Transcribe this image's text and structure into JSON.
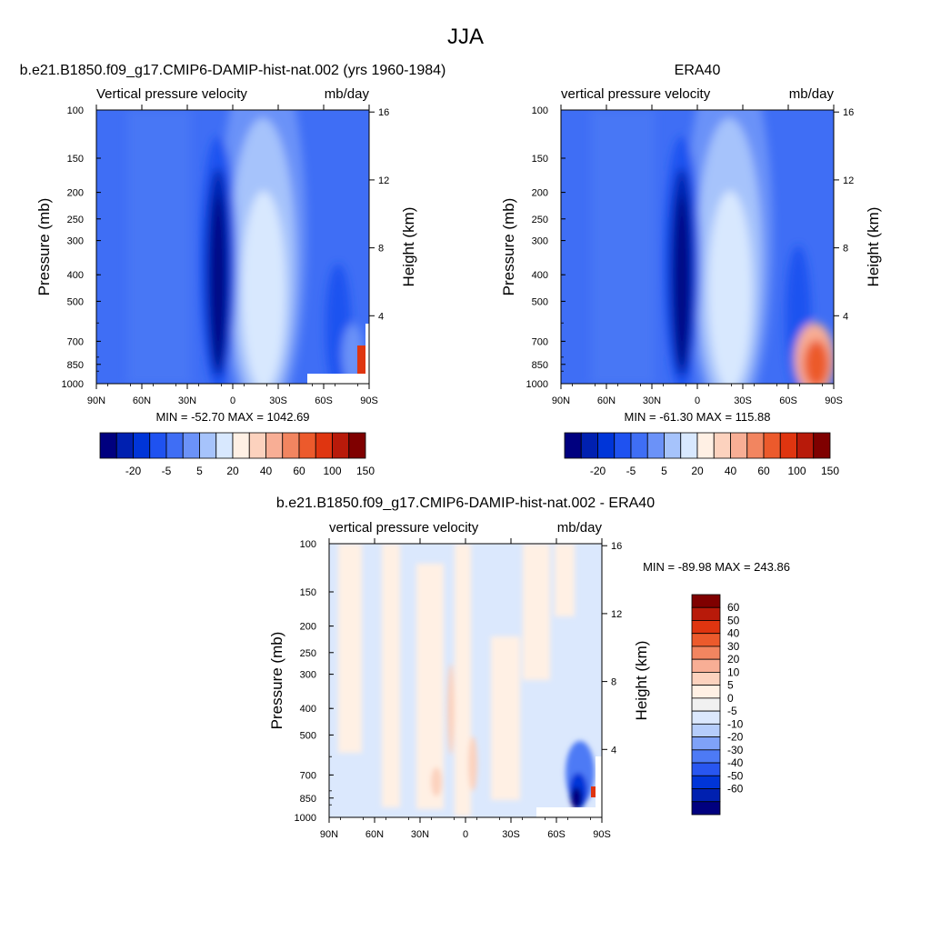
{
  "figure": {
    "title": "JJA"
  },
  "colors": {
    "main_scale": [
      "#00007f",
      "#0020b0",
      "#0035d8",
      "#1f52f0",
      "#3f6ef5",
      "#6b92f8",
      "#a6c3fb",
      "#d8e8fe",
      "#fff0e4",
      "#fcd2be",
      "#f8ae95",
      "#f28560",
      "#ec5a2c",
      "#df3510",
      "#b81a0a",
      "#7f0000"
    ],
    "diff_scale": [
      "#00007f",
      "#0020b0",
      "#0035d8",
      "#2856f0",
      "#4d7af5",
      "#7fa2f8",
      "#b5cdfb",
      "#dbe8fd",
      "#f1f1f1",
      "#fff0e4",
      "#fcd2be",
      "#f8ae95",
      "#f28560",
      "#ec5a2c",
      "#df3510",
      "#b81a0a",
      "#7f0000"
    ]
  },
  "chart_data": [
    {
      "type": "heatmap",
      "title": "b.e21.B1850.f09_g17.CMIP6-DAMIP-hist-nat.002 (yrs 1960-1984)",
      "field_label": "Vertical pressure velocity",
      "units": "mb/day",
      "ylabel": "Pressure (mb)",
      "ylabel_right": "Height (km)",
      "x_ticks": [
        "90N",
        "60N",
        "30N",
        "0",
        "30S",
        "60S",
        "90S"
      ],
      "y_ticks": [
        100,
        150,
        200,
        250,
        300,
        400,
        500,
        700,
        850,
        1000
      ],
      "y_right_ticks": [
        4,
        8,
        12,
        16
      ],
      "ylim": [
        1000,
        100
      ],
      "stats": "MIN = -52.70  MAX = 1042.69",
      "colorbar_labels": [
        "-20",
        "-5",
        "5",
        "20",
        "40",
        "60",
        "100",
        "150"
      ]
    },
    {
      "type": "heatmap",
      "title": "ERA40",
      "field_label": "vertical pressure velocity",
      "units": "mb/day",
      "ylabel": "Pressure (mb)",
      "ylabel_right": "Height (km)",
      "x_ticks": [
        "90N",
        "60N",
        "30N",
        "0",
        "30S",
        "60S",
        "90S"
      ],
      "y_ticks": [
        100,
        150,
        200,
        250,
        300,
        400,
        500,
        700,
        850,
        1000
      ],
      "y_right_ticks": [
        4,
        8,
        12,
        16
      ],
      "ylim": [
        1000,
        100
      ],
      "stats": "MIN = -61.30  MAX = 115.88",
      "colorbar_labels": [
        "-20",
        "-5",
        "5",
        "20",
        "40",
        "60",
        "100",
        "150"
      ]
    },
    {
      "type": "heatmap",
      "title": "b.e21.B1850.f09_g17.CMIP6-DAMIP-hist-nat.002 - ERA40",
      "field_label": "vertical pressure velocity",
      "units": "mb/day",
      "ylabel": "Pressure (mb)",
      "ylabel_right": "Height (km)",
      "x_ticks": [
        "90N",
        "60N",
        "30N",
        "0",
        "30S",
        "60S",
        "90S"
      ],
      "y_ticks": [
        100,
        150,
        200,
        250,
        300,
        400,
        500,
        700,
        850,
        1000
      ],
      "y_right_ticks": [
        4,
        8,
        12,
        16
      ],
      "ylim": [
        1000,
        100
      ],
      "stats": "MIN = -89.98  MAX = 243.86",
      "colorbar_labels": [
        "60",
        "50",
        "40",
        "30",
        "20",
        "10",
        "5",
        "0",
        "-5",
        "-10",
        "-20",
        "-30",
        "-40",
        "-50",
        "-60"
      ]
    }
  ]
}
